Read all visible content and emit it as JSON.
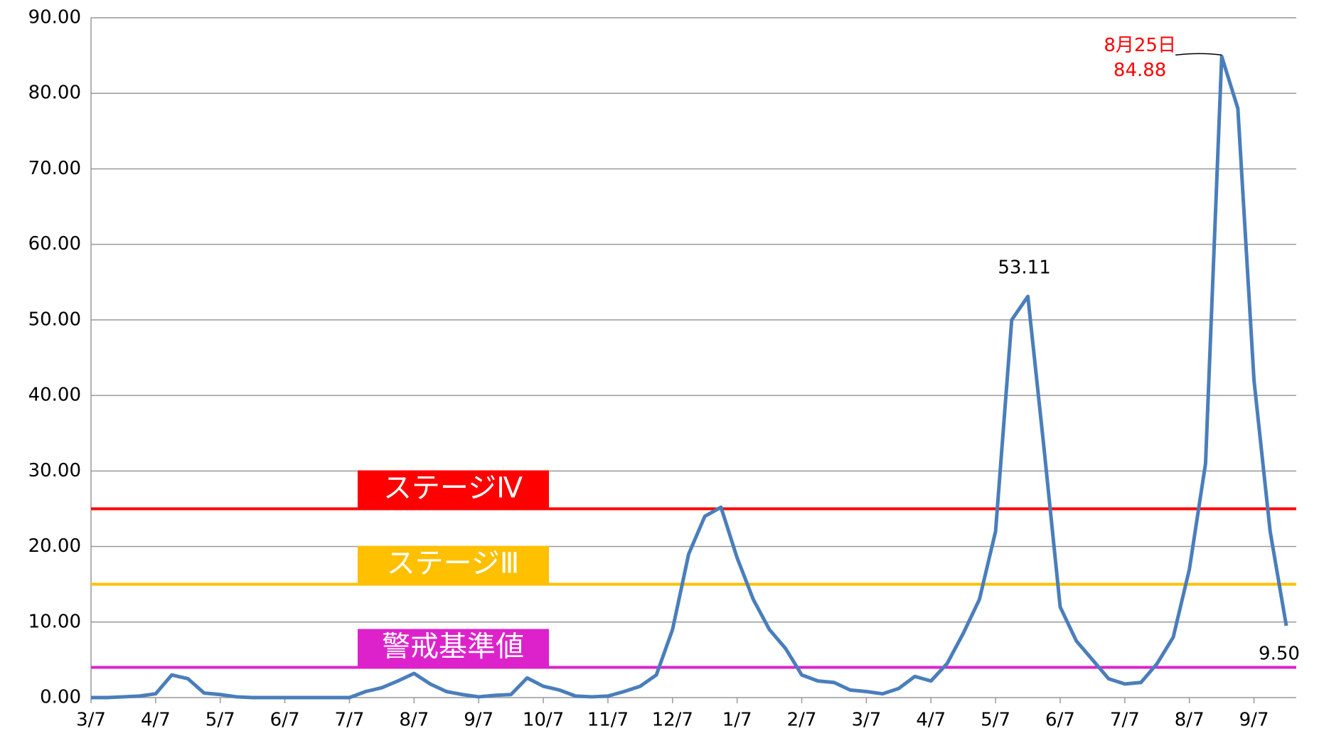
{
  "chart_data": {
    "type": "line",
    "categories": [
      "3/7",
      null,
      null,
      null,
      "4/7",
      null,
      null,
      null,
      "5/7",
      null,
      null,
      null,
      "6/7",
      null,
      null,
      null,
      "7/7",
      null,
      null,
      null,
      "8/7",
      null,
      null,
      null,
      "9/7",
      null,
      null,
      null,
      "10/7",
      null,
      null,
      null,
      "11/7",
      null,
      null,
      null,
      "12/7",
      null,
      null,
      null,
      "1/7",
      null,
      null,
      null,
      "2/7",
      null,
      null,
      null,
      "3/7",
      null,
      null,
      null,
      "4/7",
      null,
      null,
      null,
      "5/7",
      null,
      null,
      null,
      "6/7",
      null,
      null,
      null,
      "7/7",
      null,
      null,
      null,
      "8/7",
      null,
      null,
      null,
      "9/7",
      null,
      null
    ],
    "series": [
      {
        "color": "#4a7ebb",
        "values": [
          0,
          0,
          0.1,
          0.2,
          0.5,
          3.0,
          2.5,
          0.6,
          0.4,
          0.1,
          0,
          0,
          0,
          0,
          0,
          0,
          0,
          0.8,
          1.3,
          2.2,
          3.2,
          1.8,
          0.8,
          0.4,
          0.1,
          0.3,
          0.4,
          2.6,
          1.5,
          1.0,
          0.2,
          0.1,
          0.2,
          0.8,
          1.5,
          3.0,
          9.0,
          19,
          24,
          25.2,
          18.5,
          13,
          9,
          6.5,
          3.0,
          2.2,
          2.0,
          1.0,
          0.8,
          0.5,
          1.2,
          2.8,
          2.2,
          4.5,
          8.5,
          13,
          22,
          50,
          53.11,
          33,
          12,
          7.5,
          5.0,
          2.5,
          1.8,
          2.0,
          4.5,
          8,
          17,
          31,
          84.88,
          78,
          42,
          22,
          9.5
        ],
        "value_labels": [
          null,
          null,
          null,
          null,
          null,
          null,
          null,
          null,
          null,
          null,
          null,
          null,
          null,
          null,
          null,
          null,
          null,
          null,
          null,
          null,
          null,
          null,
          null,
          null,
          null,
          null,
          null,
          null,
          null,
          null,
          null,
          null,
          null,
          null,
          null,
          null,
          null,
          null,
          null,
          null,
          null,
          null,
          null,
          null,
          null,
          null,
          null,
          null,
          null,
          null,
          null,
          null,
          null,
          null,
          null,
          null,
          null,
          null,
          "53.11",
          null,
          null,
          null,
          null,
          null,
          null,
          null,
          null,
          null,
          null,
          null,
          "84.88",
          null,
          null,
          null,
          "9.50"
        ]
      }
    ],
    "annotation": "8月25日",
    "annotation_color": "#ff0000",
    "thresholds": [
      {
        "name": "ステージⅣ",
        "value": 25,
        "color": "#ff0000"
      },
      {
        "name": "ステージⅢ",
        "value": 15,
        "color": "#ffc000"
      },
      {
        "name": "警戒基準値",
        "value": 4,
        "color": "#dd22cc"
      }
    ],
    "ylim": [
      0,
      90
    ],
    "yticks": [
      {
        "value": 0,
        "label": "0.00"
      },
      {
        "value": 10,
        "label": "10.00"
      },
      {
        "value": 20,
        "label": "20.00"
      },
      {
        "value": 30,
        "label": "30.00"
      },
      {
        "value": 40,
        "label": "40.00"
      },
      {
        "value": 50,
        "label": "50.00"
      },
      {
        "value": 60,
        "label": "60.00"
      },
      {
        "value": 70,
        "label": "70.00"
      },
      {
        "value": 80,
        "label": "80.00"
      },
      {
        "value": 90,
        "label": "90.00"
      }
    ],
    "grid": true
  }
}
